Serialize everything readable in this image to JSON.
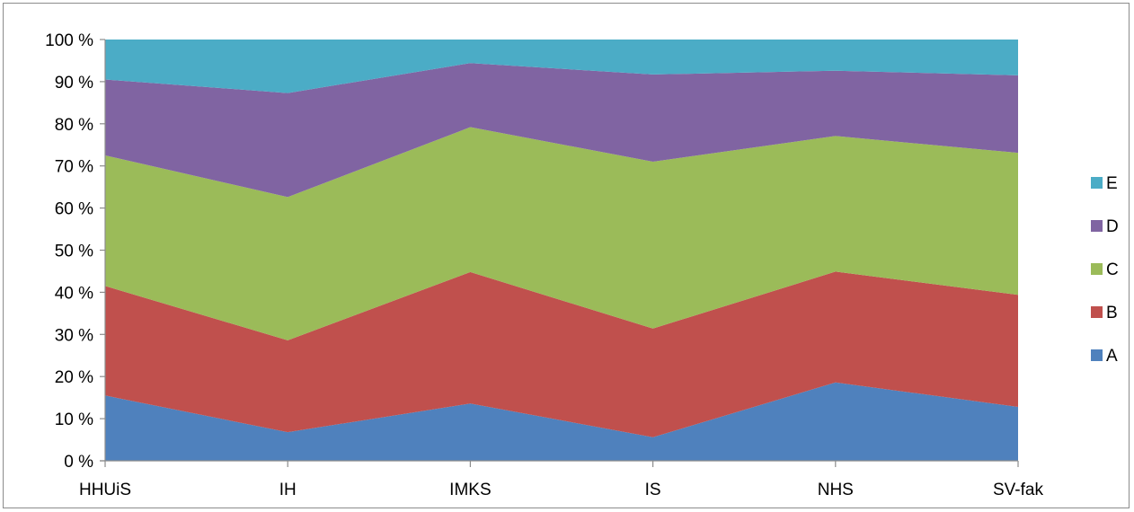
{
  "chart_data": {
    "type": "area",
    "stacked": true,
    "normalized_percent": true,
    "categories": [
      "HHUiS",
      "IH",
      "IMKS",
      "IS",
      "NHS",
      "SV-fak"
    ],
    "series": [
      {
        "name": "A",
        "color": "#4f81bd",
        "values": [
          15.5,
          6.8,
          13.6,
          5.6,
          18.6,
          12.8
        ]
      },
      {
        "name": "B",
        "color": "#c0504d",
        "values": [
          26.0,
          21.8,
          31.2,
          25.8,
          26.3,
          26.6
        ]
      },
      {
        "name": "C",
        "color": "#9bbb59",
        "values": [
          31.0,
          34.0,
          34.4,
          39.6,
          32.2,
          33.7
        ]
      },
      {
        "name": "D",
        "color": "#8064a2",
        "values": [
          18.0,
          24.7,
          15.2,
          20.7,
          15.5,
          18.4
        ]
      },
      {
        "name": "E",
        "color": "#4bacc6",
        "values": [
          9.5,
          12.7,
          5.6,
          8.3,
          7.4,
          8.5
        ]
      }
    ],
    "ylim": [
      0,
      100
    ],
    "yticks": [
      "0 %",
      "10 %",
      "20 %",
      "30 %",
      "40 %",
      "50 %",
      "60 %",
      "70 %",
      "80 %",
      "90 %",
      "100 %"
    ],
    "grid": false,
    "legend_placement": "right",
    "legend_order": [
      "E",
      "D",
      "C",
      "B",
      "A"
    ]
  }
}
